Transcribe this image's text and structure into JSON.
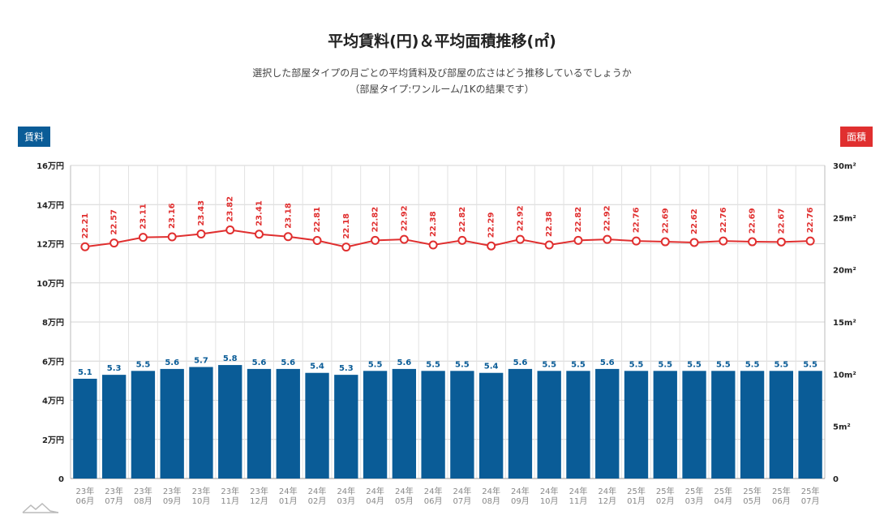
{
  "title": "平均賃料(円)＆平均面積推移(㎡)",
  "subtitle_line1": "選択した部屋タイプの月ごとの平均賃料及び部屋の広さはどう推移しているでしょうか",
  "subtitle_line2": "（部屋タイプ:ワンルーム/1Kの結果です）",
  "left_axis_tag": "賃料",
  "right_axis_tag": "面積",
  "colors": {
    "bar": "#0a5c97",
    "line": "#e02f2f",
    "tag_left": "#0a5c97",
    "tag_right": "#e02f2f"
  },
  "chart_data": {
    "type": "bar",
    "categories": [
      [
        "23年",
        "06月"
      ],
      [
        "23年",
        "07月"
      ],
      [
        "23年",
        "08月"
      ],
      [
        "23年",
        "09月"
      ],
      [
        "23年",
        "10月"
      ],
      [
        "23年",
        "11月"
      ],
      [
        "23年",
        "12月"
      ],
      [
        "24年",
        "01月"
      ],
      [
        "24年",
        "02月"
      ],
      [
        "24年",
        "03月"
      ],
      [
        "24年",
        "04月"
      ],
      [
        "24年",
        "05月"
      ],
      [
        "24年",
        "06月"
      ],
      [
        "24年",
        "07月"
      ],
      [
        "24年",
        "08月"
      ],
      [
        "24年",
        "09月"
      ],
      [
        "24年",
        "10月"
      ],
      [
        "24年",
        "11月"
      ],
      [
        "24年",
        "12月"
      ],
      [
        "25年",
        "01月"
      ],
      [
        "25年",
        "02月"
      ],
      [
        "25年",
        "03月"
      ],
      [
        "25年",
        "04月"
      ],
      [
        "25年",
        "05月"
      ],
      [
        "25年",
        "06月"
      ],
      [
        "25年",
        "07月"
      ]
    ],
    "series": [
      {
        "type": "bar",
        "axis": "left",
        "values": [
          5.1,
          5.3,
          5.5,
          5.6,
          5.7,
          5.8,
          5.6,
          5.6,
          5.4,
          5.3,
          5.5,
          5.6,
          5.5,
          5.5,
          5.4,
          5.6,
          5.5,
          5.5,
          5.6,
          5.5,
          5.5,
          5.5,
          5.5,
          5.5,
          5.5,
          5.5
        ]
      },
      {
        "type": "line",
        "axis": "right",
        "values": [
          22.21,
          22.57,
          23.11,
          23.16,
          23.43,
          23.82,
          23.41,
          23.18,
          22.81,
          22.18,
          22.82,
          22.92,
          22.38,
          22.82,
          22.29,
          22.92,
          22.38,
          22.82,
          22.92,
          22.76,
          22.69,
          22.62,
          22.76,
          22.69,
          22.67,
          22.76
        ]
      }
    ],
    "y_left": {
      "min": 0,
      "max": 16,
      "ticks": [
        0,
        2,
        4,
        6,
        8,
        10,
        12,
        14,
        16
      ],
      "tick_labels": [
        "0",
        "2万円",
        "4万円",
        "6万円",
        "8万円",
        "10万円",
        "12万円",
        "14万円",
        "16万円"
      ]
    },
    "y_right": {
      "min": 0,
      "max": 30,
      "ticks": [
        0,
        5,
        10,
        15,
        20,
        25,
        30
      ],
      "tick_labels": [
        "0",
        "5m²",
        "10m²",
        "15m²",
        "20m²",
        "25m²",
        "30m²"
      ]
    },
    "grid": true
  }
}
